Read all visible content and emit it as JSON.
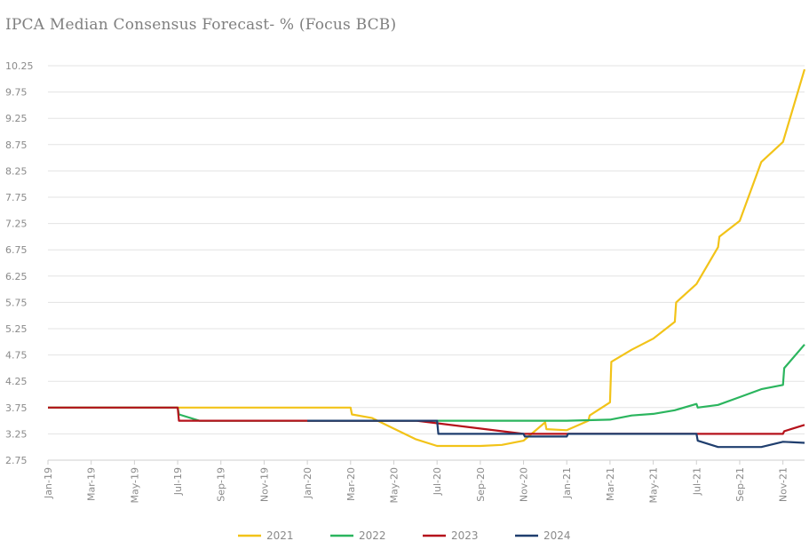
{
  "chart_data": {
    "type": "line",
    "title": "IPCA Median Consensus Forecast- % (Focus BCB)",
    "xlabel": "",
    "ylabel": "",
    "ylim": [
      2.75,
      10.25
    ],
    "yticks": [
      2.75,
      3.25,
      3.75,
      4.25,
      4.75,
      5.25,
      5.75,
      6.25,
      6.75,
      7.25,
      7.75,
      8.25,
      8.75,
      9.25,
      9.75,
      10.25
    ],
    "ytick_labels": [
      "2.75",
      "3.25",
      "3.75",
      "4.25",
      "4.75",
      "5.25",
      "5.75",
      "6.25",
      "6.75",
      "7.25",
      "7.75",
      "8.25",
      "8.75",
      "9.25",
      "9.75",
      "10.25"
    ],
    "xlim": [
      "Jan-19",
      "Dec-21"
    ],
    "xtick_labels": [
      "Jan-19",
      "Mar-19",
      "May-19",
      "Jul-19",
      "Sep-19",
      "Nov-19",
      "Jan-20",
      "Mar-20",
      "May-20",
      "Jul-20",
      "Sep-20",
      "Nov-20",
      "Jan-21",
      "Mar-21",
      "May-21",
      "Jul-21",
      "Sep-21",
      "Nov-21"
    ],
    "grid": true,
    "legend_position": "bottom",
    "series": [
      {
        "name": "2021",
        "color": "#f2c318",
        "x": [
          "Jan-19",
          "Jul-19",
          "Aug-19",
          "Jan-20",
          "Mar-20",
          "Mar-20",
          "Apr-20",
          "May-20",
          "Jun-20",
          "Jul-20",
          "Aug-20",
          "Sep-20",
          "Oct-20",
          "Nov-20",
          "Dec-20",
          "Dec-20",
          "Jan-21",
          "Feb-21",
          "Feb-21",
          "Mar-21",
          "Mar-21",
          "Apr-21",
          "May-21",
          "Jun-21",
          "Jun-21",
          "Jul-21",
          "Aug-21",
          "Aug-21",
          "Sep-21",
          "Oct-21",
          "Nov-21",
          "Dec-21"
        ],
        "values": [
          3.75,
          3.75,
          3.75,
          3.75,
          3.75,
          3.62,
          3.55,
          3.35,
          3.15,
          3.02,
          3.02,
          3.02,
          3.04,
          3.12,
          3.47,
          3.34,
          3.32,
          3.5,
          3.6,
          3.85,
          4.62,
          4.85,
          5.06,
          5.38,
          5.75,
          6.1,
          6.8,
          7.0,
          7.3,
          8.42,
          8.8,
          10.18
        ]
      },
      {
        "name": "2022",
        "color": "#2bb55e",
        "x": [
          "Jan-19",
          "Jul-19",
          "Jul-19",
          "Aug-19",
          "Jan-20",
          "Jun-20",
          "Sep-20",
          "Jan-21",
          "Mar-21",
          "Apr-21",
          "May-21",
          "Jun-21",
          "Jul-21",
          "Jul-21",
          "Aug-21",
          "Sep-21",
          "Oct-21",
          "Nov-21",
          "Nov-21",
          "Dec-21"
        ],
        "values": [
          3.75,
          3.75,
          3.62,
          3.5,
          3.5,
          3.5,
          3.5,
          3.5,
          3.52,
          3.6,
          3.63,
          3.7,
          3.82,
          3.75,
          3.8,
          3.95,
          4.1,
          4.18,
          4.5,
          4.95
        ]
      },
      {
        "name": "2023",
        "color": "#b5121b",
        "x": [
          "Jan-19",
          "Jul-19",
          "Jul-19",
          "Jan-20",
          "Jun-20",
          "Jun-20",
          "Nov-20",
          "Jan-21",
          "Jul-21",
          "Sep-21",
          "Nov-21",
          "Nov-21",
          "Dec-21"
        ],
        "values": [
          3.75,
          3.75,
          3.5,
          3.5,
          3.5,
          3.5,
          3.25,
          3.25,
          3.25,
          3.25,
          3.25,
          3.3,
          3.42
        ]
      },
      {
        "name": "2024",
        "color": "#1f3e6e",
        "x": [
          "Jan-20",
          "Jun-20",
          "Jul-20",
          "Jul-20",
          "Nov-20",
          "Nov-20",
          "Jan-21",
          "Jan-21",
          "Mar-21",
          "Jul-21",
          "Jul-21",
          "Aug-21",
          "Oct-21",
          "Nov-21",
          "Dec-21"
        ],
        "values": [
          3.5,
          3.5,
          3.5,
          3.25,
          3.25,
          3.2,
          3.2,
          3.25,
          3.25,
          3.25,
          3.12,
          3.0,
          3.0,
          3.1,
          3.08
        ]
      }
    ]
  }
}
